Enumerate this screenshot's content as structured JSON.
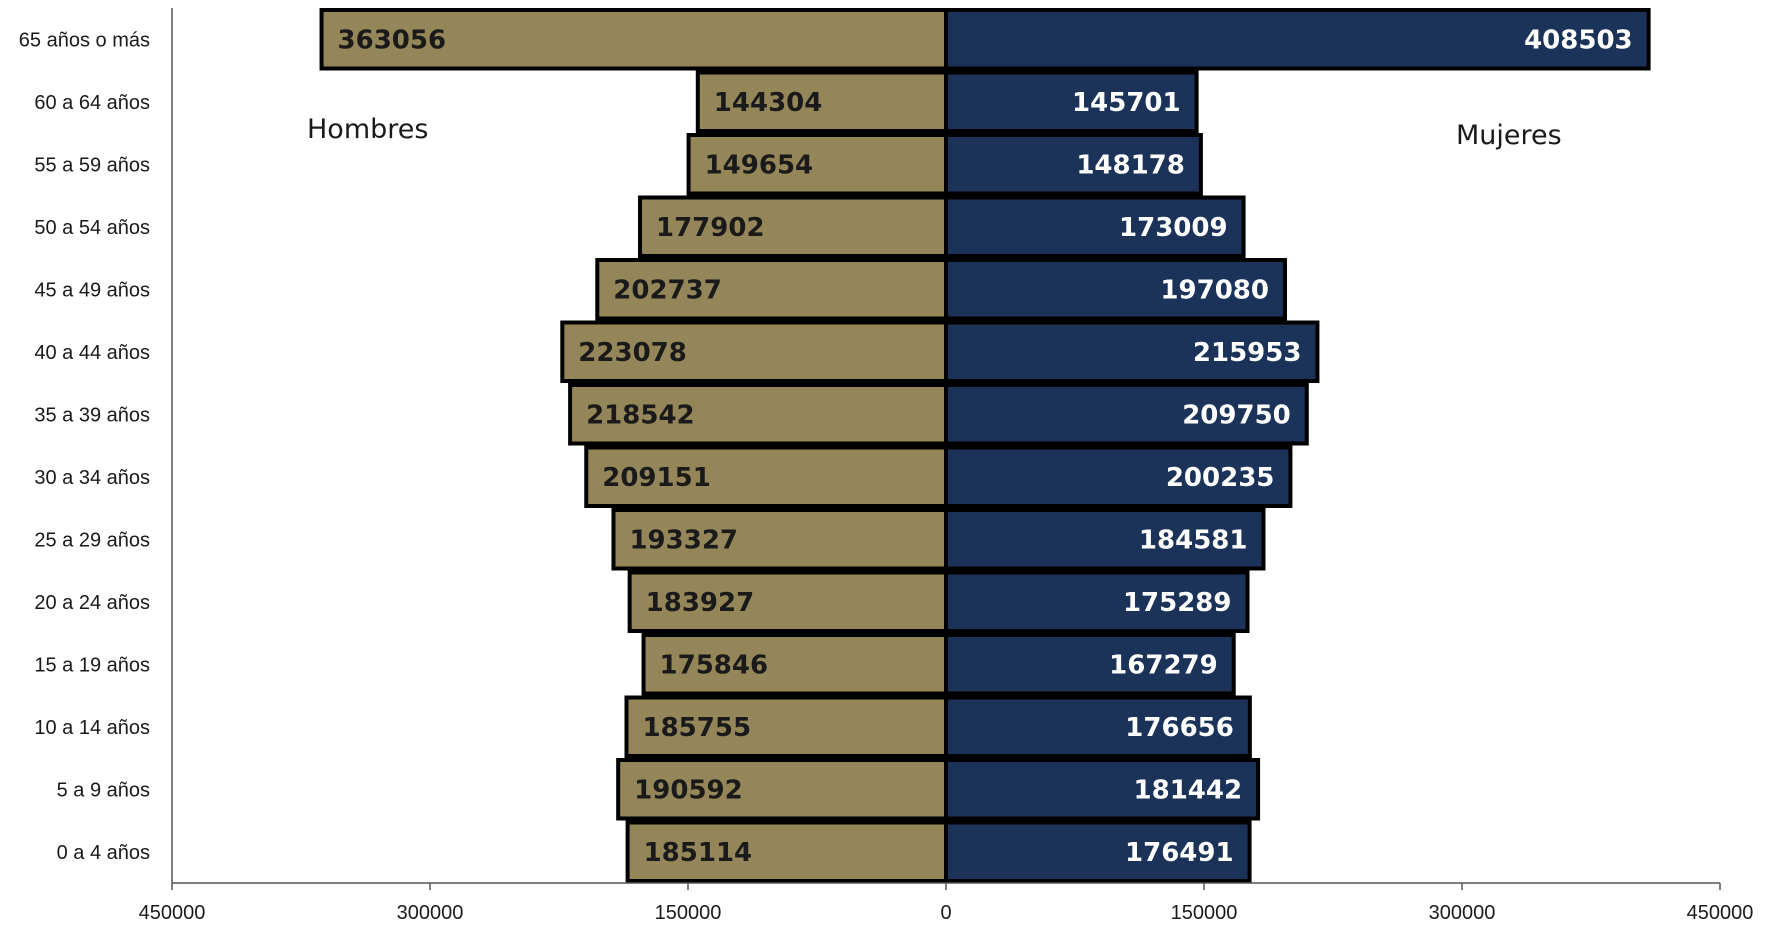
{
  "colors": {
    "hombres": "#948659",
    "mujeres": "#1b3359",
    "bar_border": "#000000",
    "hombres_label": "#1a1a1a",
    "mujeres_label": "#ffffff",
    "axis": "#555555"
  },
  "chart_data": {
    "type": "bar",
    "orientation": "horizontal",
    "subtype": "population-pyramid",
    "categories": [
      "65 años o más",
      "60 a 64 años",
      "55 a 59 años",
      "50 a 54 años",
      "45 a 49 años",
      "40 a 44 años",
      "35 a 39 años",
      "30 a 34 años",
      "25 a 29 años",
      "20 a 24 años",
      "15 a 19 años",
      "10 a 14 años",
      "5 a 9 años",
      "0 a 4 años"
    ],
    "series": [
      {
        "name": "Hombres",
        "side": "left",
        "values": [
          363056,
          144304,
          149654,
          177902,
          202737,
          223078,
          218542,
          209151,
          193327,
          183927,
          175846,
          185755,
          190592,
          185114
        ]
      },
      {
        "name": "Mujeres",
        "side": "right",
        "values": [
          408503,
          145701,
          148178,
          173009,
          197080,
          215953,
          209750,
          200235,
          184581,
          175289,
          167279,
          176656,
          181442,
          176491
        ]
      }
    ],
    "x_range": [
      -450000,
      450000
    ],
    "x_ticks": [
      -450000,
      -300000,
      -150000,
      0,
      150000,
      300000,
      450000
    ],
    "x_tick_labels": [
      "450000",
      "300000",
      "150000",
      "0",
      "150000",
      "300000",
      "450000"
    ],
    "grid": false,
    "data_labels": true
  }
}
